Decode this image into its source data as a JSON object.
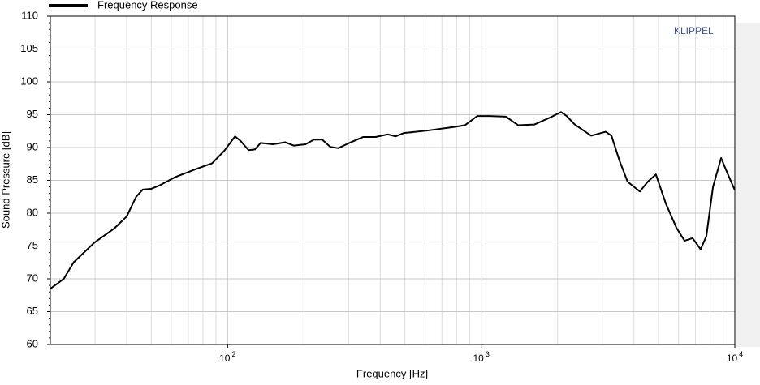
{
  "chart_data": {
    "type": "line",
    "annotation": "KLIPPEL",
    "xlabel": "Frequency  [Hz]",
    "ylabel": "Sound Pressure  [dB]",
    "xscale": "log",
    "grid": true,
    "xlim": [
      20,
      10000
    ],
    "ylim": [
      60,
      110
    ],
    "xticks": [
      {
        "value": 100,
        "label": "10",
        "exponent": "2"
      },
      {
        "value": 1000,
        "label": "10",
        "exponent": "3"
      },
      {
        "value": 10000,
        "label": "10",
        "exponent": "4"
      }
    ],
    "yticks": [
      60,
      65,
      70,
      75,
      80,
      85,
      90,
      95,
      100,
      105,
      110
    ],
    "x": [
      20,
      22.6,
      24.7,
      29.8,
      35.8,
      40,
      43.6,
      46.3,
      49.9,
      53.7,
      62.2,
      74.9,
      86.9,
      97,
      107,
      112.5,
      121,
      128,
      135,
      151,
      169,
      182,
      203,
      219,
      236,
      254,
      273,
      306,
      342,
      383,
      428,
      460,
      495,
      554,
      619,
      772,
      863,
      965,
      1078,
      1251,
      1398,
      1619,
      1875,
      2065,
      2172,
      2340,
      2713,
      3097,
      3262,
      3509,
      3776,
      4220,
      4539,
      4883,
      5340,
      5880,
      6333,
      6813,
      7330,
      7723,
      8202,
      8829,
      9369,
      10000
    ],
    "series": [
      {
        "name": "Frequency Response",
        "color": "#000000",
        "values": [
          68.5,
          70,
          72.5,
          75.5,
          77.7,
          79.5,
          82.5,
          83.6,
          83.7,
          84.2,
          85.5,
          86.7,
          87.6,
          89.5,
          91.7,
          91,
          89.6,
          89.7,
          90.7,
          90.5,
          90.8,
          90.3,
          90.5,
          91.2,
          91.2,
          90.1,
          89.9,
          90.8,
          91.6,
          91.6,
          92,
          91.7,
          92.2,
          92.4,
          92.6,
          93.1,
          93.4,
          94.8,
          94.8,
          94.7,
          93.4,
          93.5,
          94.6,
          95.4,
          94.8,
          93.5,
          91.8,
          92.4,
          91.8,
          88,
          84.8,
          83.3,
          84.8,
          85.9,
          81.5,
          77.8,
          75.8,
          76.2,
          74.5,
          76.5,
          84,
          88.4,
          86,
          83.5
        ]
      }
    ]
  }
}
